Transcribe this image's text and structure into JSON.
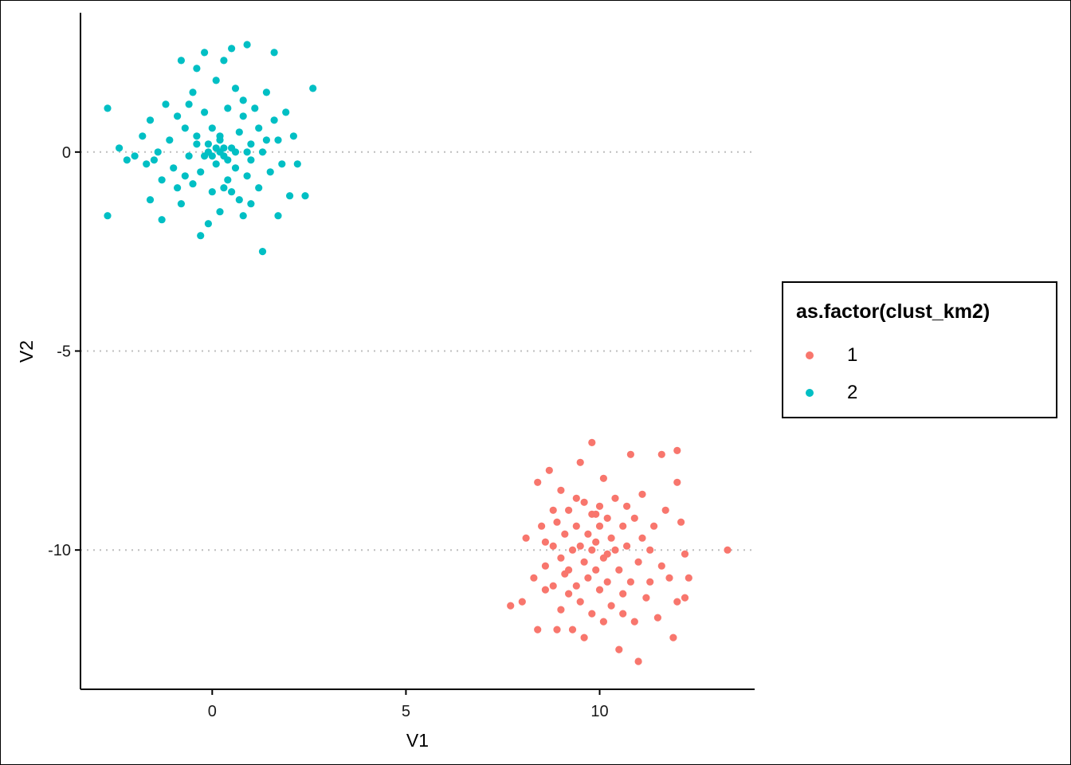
{
  "chart_data": {
    "type": "scatter",
    "title": "",
    "xlabel": "V1",
    "ylabel": "V2",
    "xlim": [
      -3.4,
      14
    ],
    "ylim": [
      -13.5,
      3.5
    ],
    "x_ticks": [
      0,
      5,
      10
    ],
    "y_ticks": [
      0,
      -5,
      -10
    ],
    "grid": "horizontal dotted at major y ticks",
    "legend": {
      "title": "as.factor(clust_km2)",
      "placement": "right"
    },
    "series": [
      {
        "name": "1",
        "color": "#F8766D",
        "points": [
          [
            7.7,
            -11.4
          ],
          [
            8.0,
            -11.3
          ],
          [
            8.1,
            -9.7
          ],
          [
            8.3,
            -10.7
          ],
          [
            8.4,
            -8.3
          ],
          [
            8.5,
            -9.4
          ],
          [
            8.6,
            -9.8
          ],
          [
            8.6,
            -10.4
          ],
          [
            8.6,
            -11.0
          ],
          [
            8.7,
            -8.0
          ],
          [
            8.8,
            -9.0
          ],
          [
            8.8,
            -9.9
          ],
          [
            8.8,
            -10.9
          ],
          [
            8.9,
            -12.0
          ],
          [
            8.9,
            -9.3
          ],
          [
            9.0,
            -8.5
          ],
          [
            9.0,
            -10.2
          ],
          [
            9.0,
            -11.5
          ],
          [
            9.1,
            -9.6
          ],
          [
            9.1,
            -10.6
          ],
          [
            9.2,
            -9.0
          ],
          [
            9.2,
            -11.1
          ],
          [
            9.3,
            -10.0
          ],
          [
            9.3,
            -12.0
          ],
          [
            9.4,
            -8.7
          ],
          [
            9.4,
            -9.4
          ],
          [
            9.4,
            -10.9
          ],
          [
            9.5,
            -9.9
          ],
          [
            9.5,
            -11.3
          ],
          [
            9.6,
            -8.8
          ],
          [
            9.6,
            -10.3
          ],
          [
            9.6,
            -12.2
          ],
          [
            9.7,
            -9.6
          ],
          [
            9.7,
            -10.7
          ],
          [
            9.8,
            -7.3
          ],
          [
            9.8,
            -9.1
          ],
          [
            9.8,
            -10.0
          ],
          [
            9.8,
            -11.6
          ],
          [
            9.9,
            -9.8
          ],
          [
            9.9,
            -10.5
          ],
          [
            10.0,
            -8.9
          ],
          [
            10.0,
            -9.4
          ],
          [
            10.0,
            -11.0
          ],
          [
            10.1,
            -10.2
          ],
          [
            10.1,
            -11.8
          ],
          [
            10.2,
            -9.2
          ],
          [
            10.2,
            -10.8
          ],
          [
            10.3,
            -9.7
          ],
          [
            10.3,
            -11.4
          ],
          [
            10.4,
            -8.7
          ],
          [
            10.4,
            -10.0
          ],
          [
            10.5,
            -10.5
          ],
          [
            10.5,
            -12.5
          ],
          [
            10.6,
            -9.4
          ],
          [
            10.6,
            -11.1
          ],
          [
            10.7,
            -8.9
          ],
          [
            10.7,
            -9.9
          ],
          [
            10.8,
            -7.6
          ],
          [
            10.8,
            -10.8
          ],
          [
            10.9,
            -9.2
          ],
          [
            10.9,
            -11.8
          ],
          [
            11.0,
            -10.3
          ],
          [
            11.0,
            -12.8
          ],
          [
            11.1,
            -8.6
          ],
          [
            11.1,
            -9.7
          ],
          [
            11.2,
            -11.2
          ],
          [
            11.3,
            -10.0
          ],
          [
            11.3,
            -10.8
          ],
          [
            11.4,
            -9.4
          ],
          [
            11.5,
            -11.7
          ],
          [
            11.6,
            -7.6
          ],
          [
            11.6,
            -10.4
          ],
          [
            11.7,
            -9.0
          ],
          [
            11.8,
            -10.7
          ],
          [
            11.9,
            -12.2
          ],
          [
            12.0,
            -8.3
          ],
          [
            12.0,
            -11.3
          ],
          [
            12.1,
            -9.3
          ],
          [
            12.2,
            -10.1
          ],
          [
            12.2,
            -11.2
          ],
          [
            12.3,
            -10.7
          ],
          [
            13.3,
            -10.0
          ],
          [
            12.0,
            -7.5
          ],
          [
            10.1,
            -8.2
          ],
          [
            9.5,
            -7.8
          ],
          [
            8.4,
            -12.0
          ],
          [
            10.6,
            -11.6
          ],
          [
            9.2,
            -10.5
          ],
          [
            10.2,
            -10.1
          ],
          [
            9.9,
            -9.1
          ]
        ]
      },
      {
        "name": "2",
        "color": "#00BFC4",
        "points": [
          [
            -2.7,
            1.1
          ],
          [
            -2.7,
            -1.6
          ],
          [
            -2.4,
            0.1
          ],
          [
            -2.2,
            -0.2
          ],
          [
            -2.0,
            -0.1
          ],
          [
            -1.8,
            0.4
          ],
          [
            -1.7,
            -0.3
          ],
          [
            -1.6,
            0.8
          ],
          [
            -1.6,
            -1.2
          ],
          [
            -1.4,
            0.0
          ],
          [
            -1.3,
            -0.7
          ],
          [
            -1.3,
            -1.7
          ],
          [
            -1.2,
            1.2
          ],
          [
            -1.1,
            0.3
          ],
          [
            -1.0,
            -0.4
          ],
          [
            -0.9,
            0.9
          ],
          [
            -0.9,
            -0.9
          ],
          [
            -0.8,
            2.3
          ],
          [
            -0.8,
            -1.3
          ],
          [
            -0.7,
            0.6
          ],
          [
            -0.6,
            -0.1
          ],
          [
            -0.5,
            1.5
          ],
          [
            -0.5,
            -0.8
          ],
          [
            -0.4,
            2.1
          ],
          [
            -0.4,
            0.2
          ],
          [
            -0.3,
            -0.5
          ],
          [
            -0.3,
            -2.1
          ],
          [
            -0.2,
            1.0
          ],
          [
            -0.2,
            2.5
          ],
          [
            -0.1,
            0.0
          ],
          [
            0.0,
            -1.0
          ],
          [
            0.0,
            0.6
          ],
          [
            0.1,
            1.8
          ],
          [
            0.1,
            -0.3
          ],
          [
            0.2,
            0.3
          ],
          [
            0.2,
            -1.5
          ],
          [
            0.3,
            2.3
          ],
          [
            0.3,
            -0.1
          ],
          [
            0.4,
            1.1
          ],
          [
            0.4,
            -0.7
          ],
          [
            0.5,
            0.1
          ],
          [
            0.5,
            2.6
          ],
          [
            0.6,
            -0.4
          ],
          [
            0.6,
            1.6
          ],
          [
            0.7,
            -1.2
          ],
          [
            0.7,
            0.5
          ],
          [
            0.8,
            -1.6
          ],
          [
            0.8,
            0.9
          ],
          [
            0.9,
            -0.6
          ],
          [
            0.9,
            2.7
          ],
          [
            1.0,
            0.2
          ],
          [
            1.0,
            -1.3
          ],
          [
            1.1,
            1.1
          ],
          [
            1.2,
            -0.9
          ],
          [
            1.2,
            0.6
          ],
          [
            1.3,
            -2.5
          ],
          [
            1.3,
            0.0
          ],
          [
            1.4,
            1.5
          ],
          [
            1.5,
            -0.5
          ],
          [
            1.6,
            0.8
          ],
          [
            1.6,
            2.5
          ],
          [
            1.7,
            -1.6
          ],
          [
            1.7,
            0.3
          ],
          [
            1.8,
            -0.3
          ],
          [
            1.9,
            1.0
          ],
          [
            2.0,
            -1.1
          ],
          [
            2.1,
            0.4
          ],
          [
            2.2,
            -0.3
          ],
          [
            2.4,
            -1.1
          ],
          [
            2.6,
            1.6
          ],
          [
            0.1,
            0.1
          ],
          [
            0.2,
            0.0
          ],
          [
            -0.1,
            0.2
          ],
          [
            0.3,
            0.1
          ],
          [
            0.0,
            -0.1
          ],
          [
            0.4,
            -0.2
          ],
          [
            -0.2,
            -0.1
          ],
          [
            0.2,
            0.4
          ],
          [
            0.6,
            0.0
          ],
          [
            -0.4,
            0.4
          ],
          [
            0.5,
            -1.0
          ],
          [
            -0.1,
            -1.8
          ],
          [
            1.0,
            -0.2
          ],
          [
            -0.7,
            -0.6
          ],
          [
            0.8,
            1.3
          ],
          [
            -1.5,
            -0.2
          ],
          [
            0.3,
            -0.9
          ],
          [
            1.4,
            0.3
          ],
          [
            -0.6,
            1.2
          ],
          [
            0.9,
            0.0
          ]
        ]
      }
    ]
  }
}
